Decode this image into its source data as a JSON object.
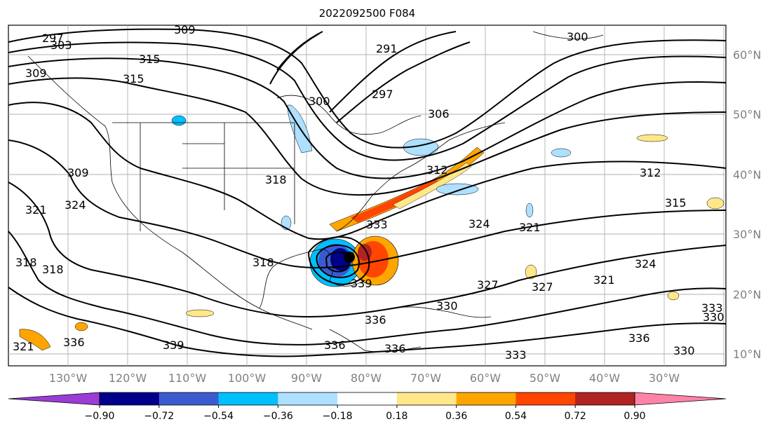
{
  "title": "2022092500 F084",
  "map": {
    "lat_labels": [
      "60°N",
      "50°N",
      "40°N",
      "30°N",
      "20°N",
      "10°N"
    ],
    "lon_labels": [
      "130°W",
      "120°W",
      "110°W",
      "100°W",
      "90°W",
      "80°W",
      "70°W",
      "60°W",
      "50°W",
      "40°W",
      "30°W"
    ],
    "contour_labels": [
      "297",
      "303",
      "309",
      "300",
      "315",
      "315",
      "300",
      "291",
      "297",
      "306",
      "312",
      "309",
      "309",
      "321",
      "324",
      "318",
      "318",
      "318",
      "333",
      "324",
      "321",
      "312",
      "315",
      "324",
      "321",
      "327",
      "327",
      "330",
      "336",
      "339",
      "336",
      "339",
      "330",
      "336",
      "336",
      "333",
      "330",
      "333",
      "336",
      "318",
      "321"
    ],
    "storm_marker": "hurricane-center"
  },
  "colorbar": {
    "ticks": [
      "−0.90",
      "−0.72",
      "−0.54",
      "−0.36",
      "−0.18",
      "0.18",
      "0.36",
      "0.54",
      "0.72",
      "0.90"
    ],
    "colors": [
      "#9b3cd6",
      "#00008b",
      "#3a5bd0",
      "#00bfff",
      "#aee0ff",
      "#ffffff",
      "#ffe78a",
      "#ffa500",
      "#ff4500",
      "#b22222",
      "#ff83a8"
    ]
  }
}
